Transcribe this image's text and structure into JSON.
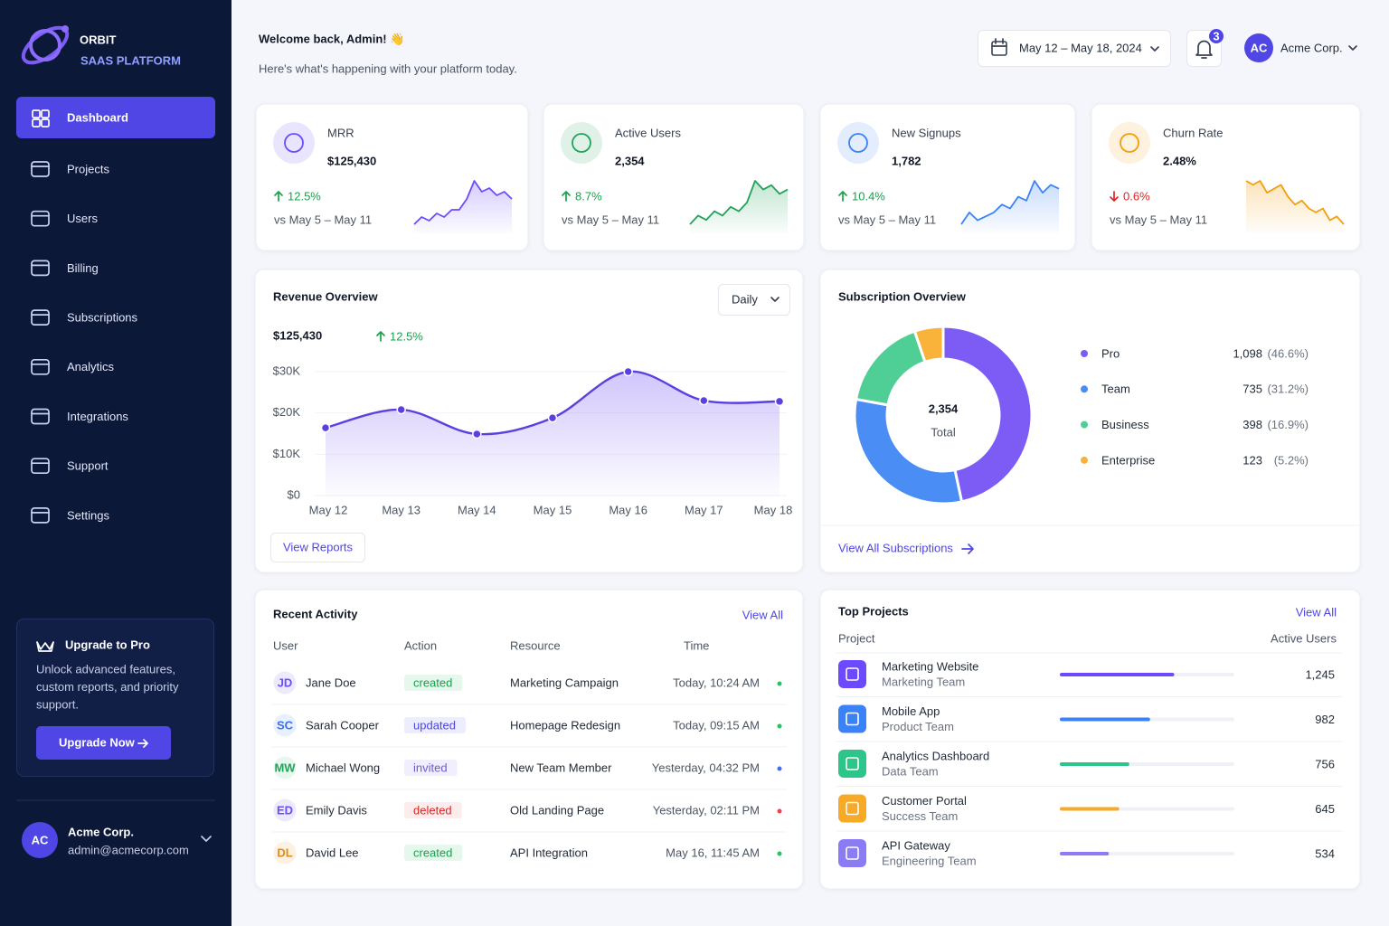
{
  "sidebar": {
    "brand": {
      "name": "ORBIT",
      "tagline": "SAAS PLATFORM"
    },
    "nav": [
      "Dashboard",
      "Projects",
      "Users",
      "Billing",
      "Subscriptions",
      "Analytics",
      "Integrations",
      "Support",
      "Settings"
    ],
    "upgrade": {
      "title": "Upgrade to Pro",
      "lines": [
        "Unlock advanced features,",
        "custom reports, and priority",
        "support."
      ],
      "button": "Upgrade Now"
    },
    "user": {
      "initials": "AC",
      "name": "Acme Corp.",
      "email": "admin@acmecorp.com"
    }
  },
  "header": {
    "title": "Welcome back, Admin! 👋",
    "subtitle": "Here's what's happening with your platform today.",
    "date_range": "May 12 – May 18, 2024",
    "notifications": 3,
    "account": {
      "initials": "AC",
      "name": "Acme Corp."
    }
  },
  "kpis": [
    {
      "label": "MRR",
      "value": "$125,430",
      "change": "12.5%",
      "direction": "up",
      "compare": "vs May 5 – May 11",
      "color": "#6d4aff",
      "trend": [
        2,
        4,
        3,
        5,
        4,
        6,
        6,
        9,
        14,
        11,
        12,
        10,
        11,
        9
      ]
    },
    {
      "label": "Active Users",
      "value": "2,354",
      "change": "8.7%",
      "direction": "up",
      "compare": "vs May 5 – May 11",
      "color": "#22a35a",
      "trend": [
        3,
        5,
        4,
        6,
        5,
        7,
        6,
        8,
        13,
        11,
        12,
        10,
        11
      ]
    },
    {
      "label": "New Signups",
      "value": "1,782",
      "change": "10.4%",
      "direction": "up",
      "compare": "vs May 5 – May 11",
      "color": "#3b82f6",
      "trend": [
        3,
        6,
        4,
        5,
        6,
        8,
        7,
        10,
        9,
        14,
        11,
        13,
        12
      ]
    },
    {
      "label": "Churn Rate",
      "value": "2.48%",
      "change": "0.6%",
      "direction": "down",
      "compare": "vs May 5 – May 11",
      "color": "#f59e0b",
      "trend": [
        13,
        12,
        13,
        10,
        11,
        12,
        9,
        7,
        8,
        6,
        5,
        6,
        3,
        4,
        2
      ]
    }
  ],
  "chart_data": [
    {
      "type": "line",
      "title": "Revenue Overview",
      "total": "$125,430",
      "change": "12.5%",
      "period": "Daily",
      "button": "View Reports",
      "color": "#5b3fe0",
      "categories": [
        "May 12",
        "May 13",
        "May 14",
        "May 15",
        "May 16",
        "May 17",
        "May 18"
      ],
      "values": [
        16400,
        20800,
        14900,
        18800,
        30000,
        23000,
        22800
      ],
      "ylim": [
        0,
        30000
      ],
      "yticks": [
        {
          "value": 0,
          "label": "$0"
        },
        {
          "value": 10000,
          "label": "$10K"
        },
        {
          "value": 20000,
          "label": "$20K"
        },
        {
          "value": 30000,
          "label": "$30K"
        }
      ],
      "grid": true
    },
    {
      "type": "donut",
      "title": "Subscription Overview",
      "total": "2,354",
      "total_label": "Total",
      "categories": [
        "Pro",
        "Team",
        "Business",
        "Enterprise"
      ],
      "values": [
        1098,
        735,
        398,
        123
      ],
      "value_labels": [
        "1,098",
        "735",
        "398",
        "123"
      ],
      "percent_labels": [
        "(46.6%)",
        "(31.2%)",
        "(16.9%)",
        "(5.2%)"
      ],
      "colors": [
        "#7c5cf5",
        "#4a8df5",
        "#4fcf95",
        "#f9b33b"
      ],
      "link": "View All Subscriptions"
    }
  ],
  "activity": {
    "title": "Recent Activity",
    "view_all": "View All",
    "columns": [
      "User",
      "Action",
      "Resource",
      "Time"
    ],
    "rows": [
      {
        "initials": "JD",
        "user": "Jane Doe",
        "action": "created",
        "resource": "Marketing Campaign",
        "time": "Today, 10:24 AM",
        "dot_color": "#22c55e"
      },
      {
        "initials": "SC",
        "user": "Sarah Cooper",
        "action": "updated",
        "resource": "Homepage Redesign",
        "time": "Today, 09:15 AM",
        "dot_color": "#22c55e"
      },
      {
        "initials": "MW",
        "user": "Michael Wong",
        "action": "invited",
        "resource": "New Team Member",
        "time": "Yesterday, 04:32 PM",
        "dot_color": "#3b6ff5"
      },
      {
        "initials": "ED",
        "user": "Emily Davis",
        "action": "deleted",
        "resource": "Old Landing Page",
        "time": "Yesterday, 02:11 PM",
        "dot_color": "#ef4444"
      },
      {
        "initials": "DL",
        "user": "David Lee",
        "action": "created",
        "resource": "API Integration",
        "time": "May 16, 11:45 AM",
        "dot_color": "#22c55e"
      }
    ]
  },
  "projects": {
    "title": "Top Projects",
    "view_all": "View All",
    "columns": [
      "Project",
      "Active Users"
    ],
    "xlim": [
      0,
      1900
    ],
    "rows": [
      {
        "name": "Marketing Website",
        "team": "Marketing Team",
        "value": 1245,
        "value_label": "1,245",
        "color": "#6d4aff"
      },
      {
        "name": "Mobile App",
        "team": "Product Team",
        "value": 982,
        "value_label": "982",
        "color": "#3b82f6"
      },
      {
        "name": "Analytics Dashboard",
        "team": "Data Team",
        "value": 756,
        "value_label": "756",
        "color": "#2ec58a"
      },
      {
        "name": "Customer Portal",
        "team": "Success Team",
        "value": 645,
        "value_label": "645",
        "color": "#f7a928"
      },
      {
        "name": "API Gateway",
        "team": "Engineering Team",
        "value": 534,
        "value_label": "534",
        "color": "#8b7cf6"
      }
    ]
  }
}
